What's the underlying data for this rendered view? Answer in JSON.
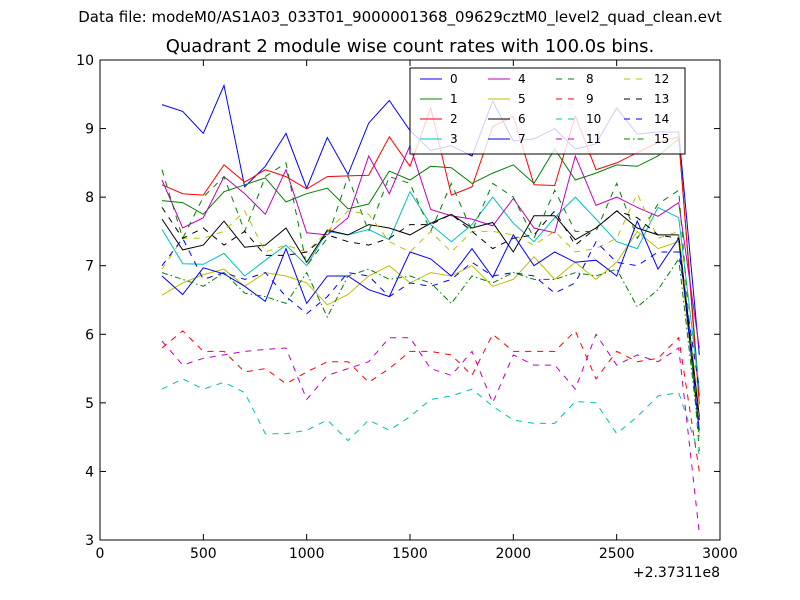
{
  "figure": {
    "suptitle": "Data file: modeM0/AS1A03_033T01_9000001368_09629cztM0_level2_quad_clean.evt"
  },
  "chart_data": {
    "type": "line",
    "title": "Quadrant 2 module wise count rates with 100.0s bins.",
    "xlabel": "",
    "ylabel": "",
    "xlim": [
      0,
      3000
    ],
    "ylim": [
      3,
      10
    ],
    "xticks": [
      "0",
      "500",
      "1000",
      "1500",
      "2000",
      "2500",
      "3000"
    ],
    "yticks": [
      "3",
      "4",
      "5",
      "6",
      "7",
      "8",
      "9",
      "10"
    ],
    "x_offset_label": "+2.37311e8",
    "grid": false,
    "legend_position": "top-right",
    "x": [
      300,
      400,
      500,
      600,
      700,
      800,
      900,
      1000,
      1100,
      1200,
      1300,
      1400,
      1500,
      1600,
      1700,
      1800,
      1900,
      2000,
      2100,
      2200,
      2300,
      2400,
      2500,
      2600,
      2700,
      2800,
      2900
    ],
    "series": [
      {
        "name": "0",
        "color": "#0000ff",
        "dash": "solid",
        "opacity": 1,
        "values": [
          9.35,
          9.25,
          8.93,
          9.63,
          8.15,
          8.45,
          8.93,
          8.13,
          8.87,
          8.33,
          9.08,
          9.41,
          8.97,
          8.68,
          8.75,
          8.6,
          9.4,
          8.82,
          8.85,
          9.0,
          8.7,
          8.78,
          9.3,
          8.92,
          8.95,
          8.95,
          5.7
        ]
      },
      {
        "name": "1",
        "color": "#008000",
        "dash": "solid",
        "opacity": 1,
        "values": [
          7.95,
          7.92,
          7.75,
          8.08,
          8.18,
          8.28,
          7.93,
          8.05,
          8.13,
          7.83,
          7.9,
          8.38,
          8.25,
          8.45,
          8.43,
          8.2,
          8.35,
          8.47,
          8.2,
          8.7,
          8.25,
          8.35,
          8.47,
          8.45,
          8.6,
          8.85,
          5.1
        ]
      },
      {
        "name": "2",
        "color": "#ff0000",
        "dash": "solid",
        "opacity": 1,
        "values": [
          8.18,
          8.05,
          8.03,
          8.47,
          8.22,
          8.4,
          8.3,
          8.12,
          8.3,
          8.31,
          8.32,
          8.88,
          8.45,
          9.3,
          8.03,
          8.15,
          9.03,
          9.18,
          8.18,
          8.17,
          9.18,
          8.4,
          8.5,
          8.65,
          8.8,
          8.88,
          4.98
        ]
      },
      {
        "name": "3",
        "color": "#00bfbf",
        "dash": "solid",
        "opacity": 1,
        "values": [
          7.53,
          7.03,
          7.02,
          7.18,
          6.85,
          7.08,
          7.3,
          7.0,
          7.5,
          7.45,
          7.53,
          7.38,
          8.08,
          7.6,
          7.35,
          7.6,
          8.0,
          7.62,
          7.35,
          7.7,
          8.0,
          7.68,
          7.35,
          7.25,
          7.85,
          7.7,
          5.2
        ]
      },
      {
        "name": "4",
        "color": "#bf00bf",
        "dash": "solid",
        "opacity": 1,
        "values": [
          8.25,
          7.55,
          7.7,
          8.3,
          8.05,
          7.75,
          8.4,
          7.48,
          7.45,
          7.7,
          8.6,
          8.05,
          8.75,
          7.82,
          7.73,
          7.68,
          7.58,
          7.98,
          7.55,
          7.48,
          8.6,
          7.88,
          8.0,
          7.85,
          7.72,
          7.92,
          5.8
        ]
      },
      {
        "name": "5",
        "color": "#bfbf00",
        "dash": "solid",
        "opacity": 1,
        "values": [
          6.57,
          6.75,
          6.87,
          6.95,
          6.7,
          6.9,
          6.85,
          6.75,
          6.43,
          6.58,
          6.85,
          7.0,
          6.75,
          6.9,
          6.85,
          7.0,
          6.7,
          6.8,
          7.13,
          6.8,
          7.05,
          6.8,
          7.05,
          7.5,
          7.25,
          7.35,
          4.55
        ]
      },
      {
        "name": "6",
        "color": "#000000",
        "dash": "solid",
        "opacity": 1,
        "values": [
          7.68,
          7.23,
          7.3,
          7.65,
          7.27,
          7.3,
          7.55,
          7.05,
          7.52,
          7.45,
          7.6,
          7.55,
          7.45,
          7.62,
          7.75,
          7.55,
          7.63,
          7.2,
          7.73,
          7.73,
          7.38,
          7.55,
          7.8,
          7.55,
          7.45,
          7.45,
          4.8
        ]
      },
      {
        "name": "7",
        "color": "#0000ff",
        "dash": "solid",
        "opacity": 1,
        "values": [
          6.85,
          6.58,
          6.97,
          6.88,
          6.7,
          6.48,
          7.25,
          6.45,
          6.85,
          6.85,
          6.65,
          6.55,
          7.2,
          7.1,
          6.85,
          7.25,
          6.83,
          7.45,
          7.0,
          7.2,
          7.05,
          7.08,
          6.85,
          7.65,
          6.95,
          7.4,
          4.6
        ]
      },
      {
        "name": "8",
        "color": "#008000",
        "dash": "dashed",
        "opacity": 1,
        "values": [
          8.4,
          7.4,
          8.0,
          8.3,
          7.5,
          8.3,
          8.5,
          7.0,
          7.4,
          8.3,
          7.5,
          8.3,
          8.2,
          7.5,
          8.2,
          7.5,
          8.2,
          8.0,
          7.4,
          8.1,
          7.5,
          7.5,
          8.2,
          7.4,
          7.9,
          8.1,
          4.3
        ]
      },
      {
        "name": "9",
        "color": "#ff0000",
        "dash": "dashed",
        "opacity": 1,
        "values": [
          5.8,
          6.05,
          5.75,
          5.75,
          5.45,
          5.5,
          5.28,
          5.45,
          5.6,
          5.6,
          5.3,
          5.5,
          5.75,
          5.75,
          5.7,
          5.4,
          6.0,
          5.75,
          5.75,
          5.75,
          6.05,
          5.35,
          5.75,
          5.6,
          5.65,
          5.95,
          4.0
        ]
      },
      {
        "name": "10",
        "color": "#00bfbf",
        "dash": "dashed",
        "opacity": 1,
        "values": [
          5.2,
          5.35,
          5.2,
          5.3,
          5.15,
          4.55,
          4.55,
          4.6,
          4.75,
          4.45,
          4.75,
          4.6,
          4.8,
          5.05,
          5.1,
          5.2,
          4.95,
          4.75,
          4.7,
          4.7,
          5.02,
          5.0,
          4.55,
          4.8,
          5.1,
          5.15,
          4.25
        ]
      },
      {
        "name": "11",
        "color": "#bf00bf",
        "dash": "dashed",
        "opacity": 1,
        "values": [
          5.9,
          5.55,
          5.65,
          5.7,
          5.75,
          5.78,
          5.8,
          5.05,
          5.4,
          5.5,
          5.6,
          5.95,
          5.95,
          5.5,
          5.4,
          5.75,
          5.0,
          5.7,
          5.55,
          5.55,
          5.2,
          6.0,
          5.55,
          5.7,
          5.6,
          5.8,
          3.1
        ]
      },
      {
        "name": "12",
        "color": "#bfbf00",
        "dash": "dashed",
        "opacity": 1,
        "values": [
          6.95,
          7.4,
          7.4,
          7.5,
          7.8,
          7.2,
          7.3,
          7.2,
          7.5,
          7.8,
          7.75,
          7.35,
          7.2,
          7.5,
          7.2,
          7.5,
          7.5,
          7.45,
          7.3,
          7.5,
          7.2,
          7.25,
          7.4,
          8.05,
          7.4,
          7.5,
          4.9
        ]
      },
      {
        "name": "13",
        "color": "#000000",
        "dash": "dashed",
        "opacity": 1,
        "values": [
          7.85,
          7.4,
          7.55,
          7.3,
          7.5,
          7.15,
          7.15,
          7.2,
          7.45,
          7.35,
          7.3,
          7.4,
          7.6,
          7.6,
          7.75,
          7.5,
          7.25,
          7.4,
          7.45,
          7.8,
          7.3,
          7.55,
          7.8,
          7.7,
          7.45,
          7.4,
          4.75
        ]
      },
      {
        "name": "14",
        "color": "#0000ff",
        "dash": "dashed",
        "opacity": 1,
        "values": [
          7.0,
          7.4,
          6.8,
          6.9,
          6.8,
          6.9,
          6.55,
          6.3,
          6.55,
          6.9,
          6.85,
          6.55,
          6.75,
          6.7,
          6.8,
          7.05,
          6.85,
          6.9,
          6.85,
          6.6,
          6.75,
          7.35,
          7.05,
          7.0,
          7.2,
          7.2,
          5.2
        ]
      },
      {
        "name": "15",
        "color": "#008000",
        "dash": "dashdot",
        "opacity": 1,
        "values": [
          6.9,
          6.8,
          6.7,
          6.9,
          6.6,
          6.55,
          6.45,
          6.9,
          6.25,
          6.85,
          6.95,
          6.8,
          6.85,
          6.75,
          6.45,
          6.85,
          6.75,
          6.9,
          6.8,
          6.8,
          6.9,
          6.85,
          6.95,
          6.4,
          6.65,
          7.1,
          4.5
        ]
      }
    ]
  }
}
